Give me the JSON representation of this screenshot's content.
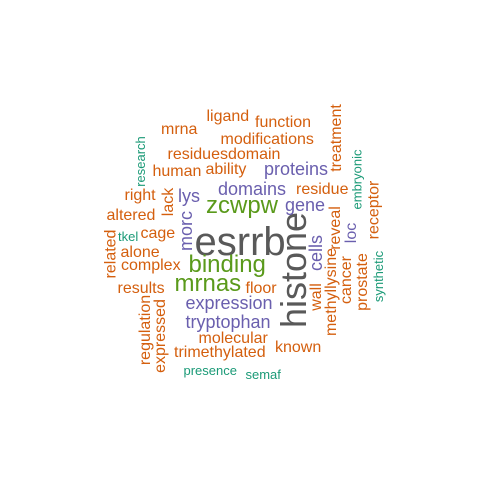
{
  "palette": {
    "gray": "#595959",
    "green": "#5a9a1b",
    "purple": "#6a5fae",
    "orange": "#d45f0e",
    "teal": "#1b9a77"
  },
  "words": {
    "esrrb": "esrrb",
    "histone": "histone",
    "binding": "binding",
    "zcwpw": "zcwpw",
    "mrnas": "mrnas",
    "expression": "expression",
    "tryptophan": "tryptophan",
    "domains": "domains",
    "gene": "gene",
    "proteins": "proteins",
    "lys": "lys",
    "morc": "morc",
    "cells": "cells",
    "loc": "loc",
    "residue": "residue",
    "ligand": "ligand",
    "function": "function",
    "mrna": "mrna",
    "modifications": "modifications",
    "residuesdomain": "residuesdomain",
    "human": "human",
    "ability": "ability",
    "treatment": "treatment",
    "right": "right",
    "lack": "lack",
    "altered": "altered",
    "related": "related",
    "cage": "cage",
    "alone": "alone",
    "complex": "complex",
    "reveal": "reveal",
    "receptor": "receptor",
    "floor": "floor",
    "results": "results",
    "wall": "wall",
    "methyllysine": "methyllysine",
    "cancer": "cancer",
    "prostate": "prostate",
    "regulation": "regulation",
    "expressed": "expressed",
    "molecular": "molecular",
    "trimethylated": "trimethylated",
    "known": "known",
    "research": "research",
    "embryonic": "embryonic",
    "tkel": "tkel",
    "synthetic": "synthetic",
    "presence": "presence",
    "semaf": "semaf"
  }
}
